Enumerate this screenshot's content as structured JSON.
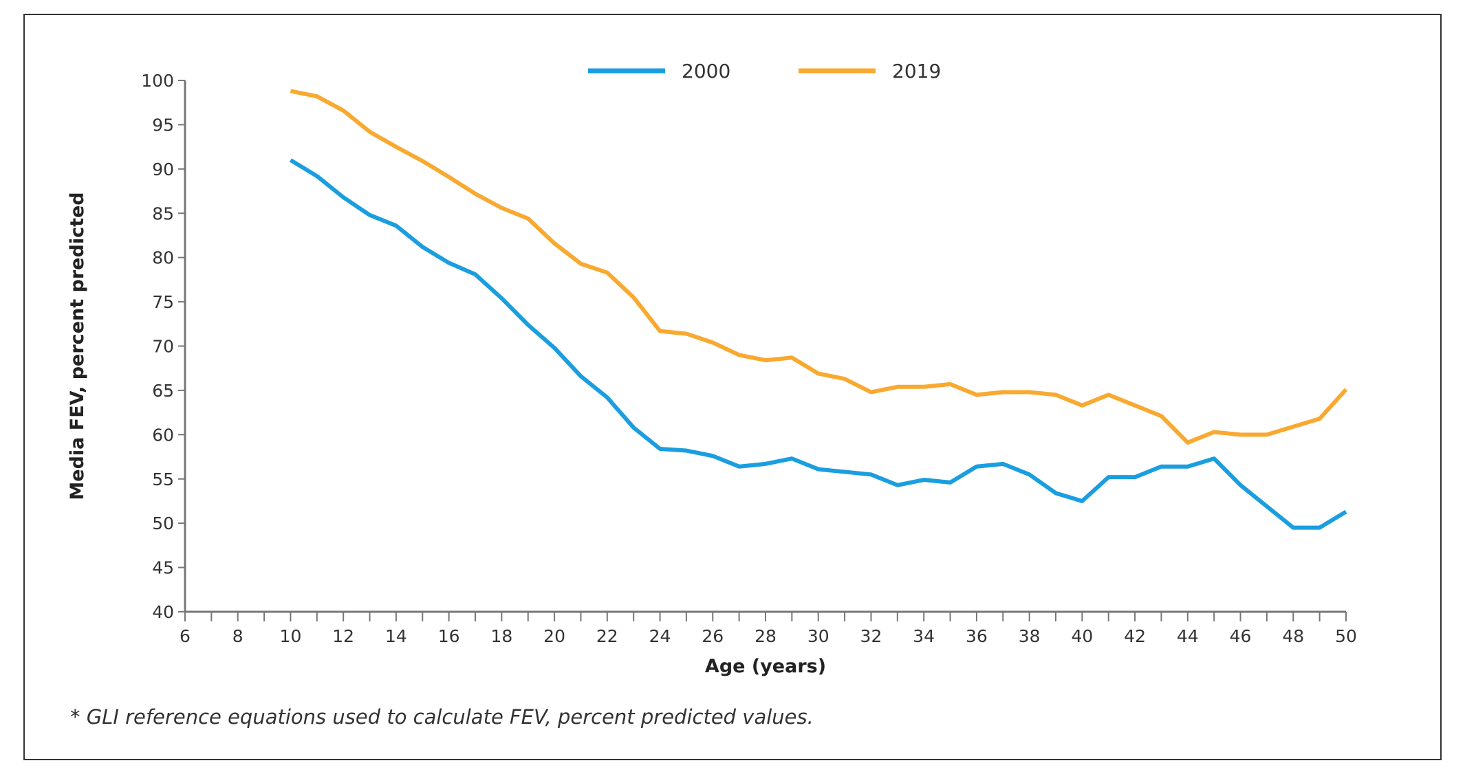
{
  "chart_data": {
    "type": "line",
    "title": "",
    "xlabel": "Age (years)",
    "ylabel": "Media FEV, percent predicted",
    "xlim": [
      6,
      50
    ],
    "ylim": [
      40,
      100
    ],
    "xticks": [
      6,
      8,
      10,
      12,
      14,
      16,
      18,
      20,
      22,
      24,
      26,
      28,
      30,
      32,
      34,
      36,
      38,
      40,
      42,
      44,
      46,
      48,
      50
    ],
    "yticks": [
      40,
      45,
      50,
      55,
      60,
      65,
      70,
      75,
      80,
      85,
      90,
      95,
      100
    ],
    "grid": false,
    "legend": "top-center",
    "x": [
      10,
      11,
      12,
      13,
      14,
      15,
      16,
      17,
      18,
      19,
      20,
      21,
      22,
      23,
      24,
      25,
      26,
      27,
      28,
      29,
      30,
      31,
      32,
      33,
      34,
      35,
      36,
      37,
      38,
      39,
      40,
      41,
      42,
      43,
      44,
      45,
      46,
      47,
      48,
      49,
      50
    ],
    "series": [
      {
        "name": "2000",
        "color": "#1a9ee0",
        "values": [
          91.0,
          89.2,
          86.8,
          84.8,
          83.6,
          81.2,
          79.4,
          78.1,
          75.4,
          72.4,
          69.8,
          66.6,
          64.2,
          60.8,
          58.4,
          58.2,
          57.6,
          56.4,
          56.7,
          57.3,
          56.1,
          55.8,
          55.5,
          54.3,
          54.9,
          54.6,
          56.4,
          56.7,
          55.5,
          53.4,
          52.5,
          55.2,
          55.2,
          56.4,
          56.4,
          57.3,
          54.3,
          51.9,
          49.5,
          49.5,
          51.3
        ]
      },
      {
        "name": "2019",
        "color": "#f9a930",
        "values": [
          98.8,
          98.2,
          96.6,
          94.2,
          92.5,
          90.9,
          89.1,
          87.2,
          85.6,
          84.4,
          81.6,
          79.3,
          78.3,
          75.5,
          71.7,
          71.4,
          70.4,
          69.0,
          68.4,
          68.7,
          66.9,
          66.3,
          64.8,
          65.4,
          65.4,
          65.7,
          64.5,
          64.8,
          64.8,
          64.5,
          63.3,
          64.5,
          63.3,
          62.1,
          59.1,
          60.3,
          60.0,
          60.0,
          60.9,
          61.8,
          65.1
        ]
      }
    ]
  },
  "footnote": "* GLI reference equations used to calculate FEV, percent predicted values."
}
